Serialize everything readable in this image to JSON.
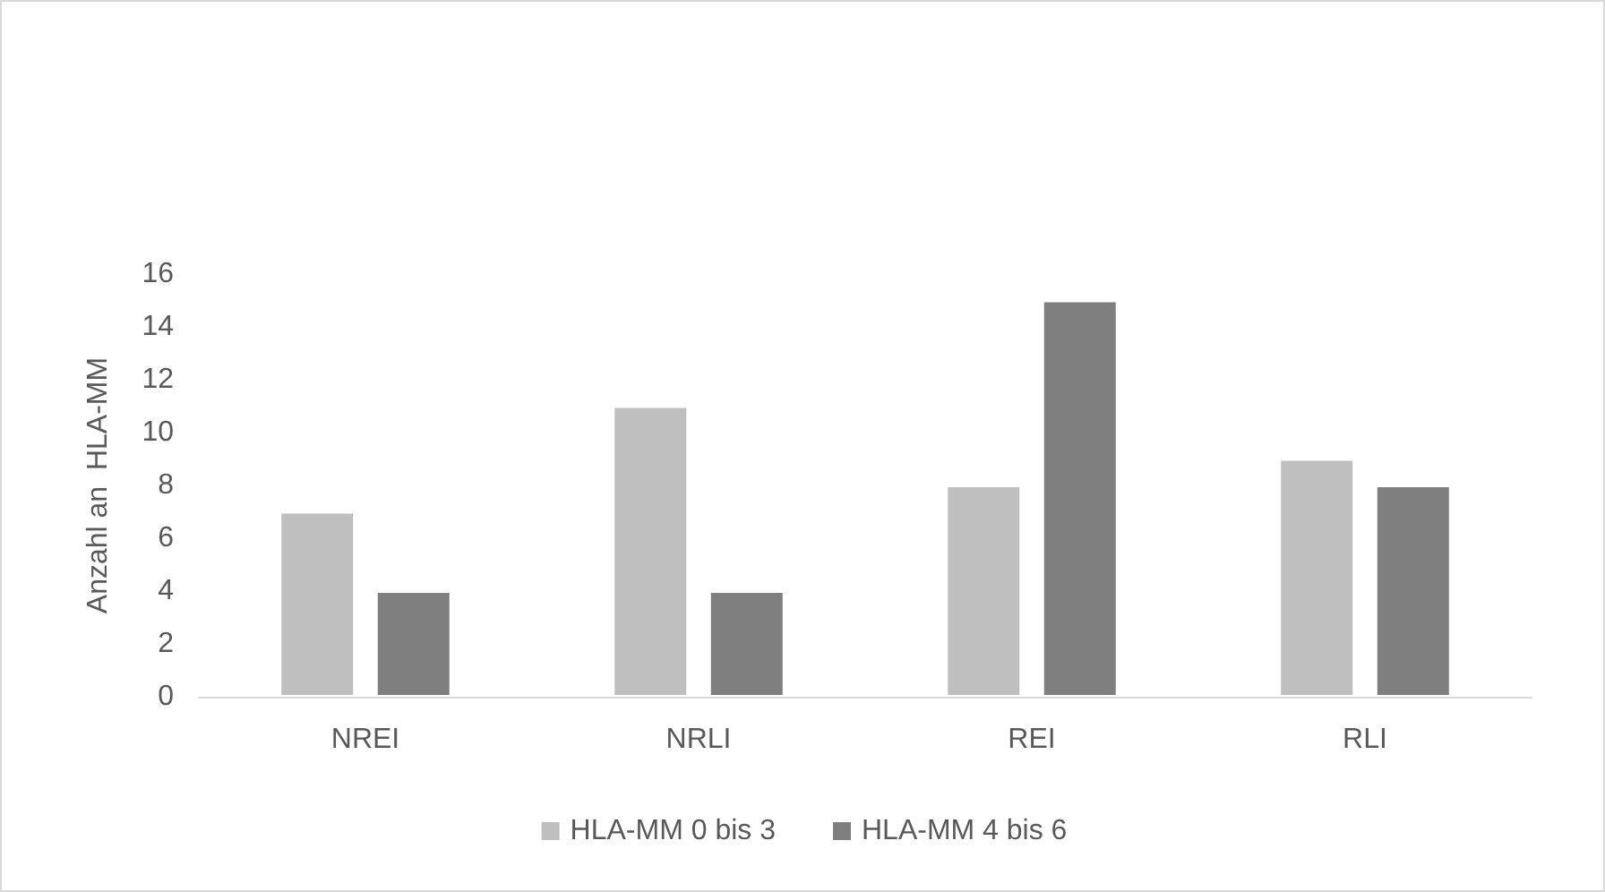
{
  "chart_data": {
    "type": "bar",
    "ylabel": "Anzahl an  HLA-MM",
    "categories": [
      "NREI",
      "NRLI",
      "REI",
      "RLI"
    ],
    "series": [
      {
        "name": "HLA-MM 0 bis 3",
        "color": "#bfbfbf",
        "values": [
          7,
          11,
          8,
          9
        ]
      },
      {
        "name": "HLA-MM 4 bis 6",
        "color": "#7f7f7f",
        "values": [
          4,
          4,
          15,
          8
        ]
      }
    ],
    "ylim": [
      0,
      16
    ],
    "yticks": [
      0,
      2,
      4,
      6,
      8,
      10,
      12,
      14,
      16
    ],
    "grid": false,
    "legend": "bottom"
  }
}
